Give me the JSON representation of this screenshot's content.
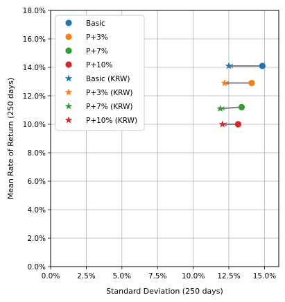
{
  "chart_data": {
    "type": "scatter",
    "title": "",
    "xlabel": "Standard Deviation (250 days)",
    "ylabel": "Mean Rate of Return (250 days)",
    "xlim": [
      0,
      16
    ],
    "ylim": [
      0,
      18
    ],
    "x_ticks": [
      0,
      2.5,
      5,
      7.5,
      10,
      12.5,
      15
    ],
    "y_ticks": [
      0,
      2,
      4,
      6,
      8,
      10,
      12,
      14,
      16,
      18
    ],
    "x_tick_labels": [
      "0.0%",
      "2.5%",
      "5.0%",
      "7.5%",
      "10.0%",
      "12.5%",
      "15.0%"
    ],
    "y_tick_labels": [
      "0.0%",
      "2.0%",
      "4.0%",
      "6.0%",
      "8.0%",
      "10.0%",
      "12.0%",
      "14.0%",
      "16.0%",
      "18.0%"
    ],
    "grid": true,
    "legend_position": "top-left",
    "series": [
      {
        "name": "Basic",
        "marker": "circle",
        "color": "#1f77b4",
        "x": [
          14.85
        ],
        "y": [
          14.1
        ]
      },
      {
        "name": "P+3%",
        "marker": "circle",
        "color": "#ff7f0e",
        "x": [
          14.1
        ],
        "y": [
          12.9
        ]
      },
      {
        "name": "P+7%",
        "marker": "circle",
        "color": "#2ca02c",
        "x": [
          13.4
        ],
        "y": [
          11.2
        ]
      },
      {
        "name": "P+10%",
        "marker": "circle",
        "color": "#d62728",
        "x": [
          13.15
        ],
        "y": [
          10.0
        ]
      },
      {
        "name": "Basic (KRW)",
        "marker": "star",
        "color": "#1f77b4",
        "x": [
          12.5
        ],
        "y": [
          14.1
        ]
      },
      {
        "name": "P+3% (KRW)",
        "marker": "star",
        "color": "#ff7f0e",
        "x": [
          12.2
        ],
        "y": [
          12.9
        ]
      },
      {
        "name": "P+7% (KRW)",
        "marker": "star",
        "color": "#2ca02c",
        "x": [
          11.9
        ],
        "y": [
          11.1
        ]
      },
      {
        "name": "P+10% (KRW)",
        "marker": "star",
        "color": "#d62728",
        "x": [
          12.05
        ],
        "y": [
          10.0
        ]
      }
    ],
    "arrows": [
      {
        "from": [
          14.85,
          14.1
        ],
        "to": [
          12.5,
          14.1
        ]
      },
      {
        "from": [
          14.1,
          12.9
        ],
        "to": [
          12.2,
          12.9
        ]
      },
      {
        "from": [
          13.4,
          11.2
        ],
        "to": [
          11.9,
          11.1
        ]
      },
      {
        "from": [
          13.15,
          10.0
        ],
        "to": [
          12.05,
          10.0
        ]
      }
    ],
    "arrow_color": "#808080"
  }
}
